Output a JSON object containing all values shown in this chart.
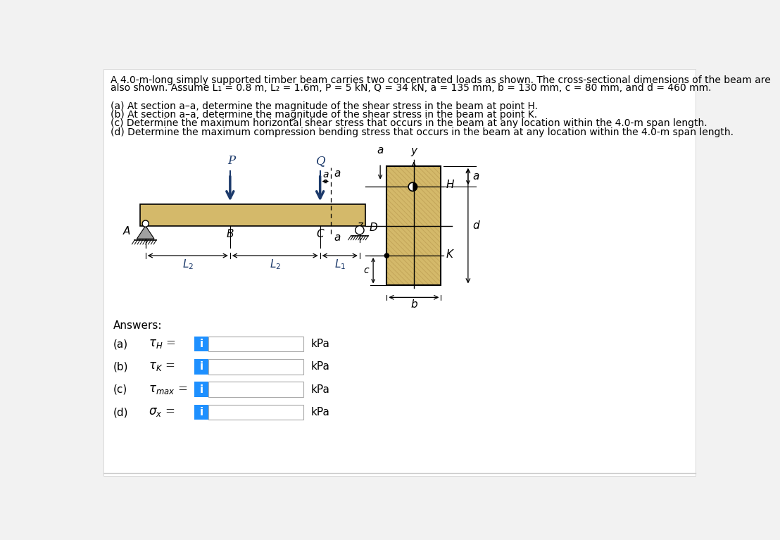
{
  "title_line1": "A 4.0-m-long simply supported timber beam carries two concentrated loads as shown. The cross-sectional dimensions of the beam are",
  "title_line2": "also shown. Assume L₁ = 0.8 m, L₂ = 1.6m, P = 5 kN, Q = 34 kN, a = 135 mm, b = 130 mm, c = 80 mm, and d = 460 mm.",
  "questions": [
    "(a) At section a–a, determine the magnitude of the shear stress in the beam at point H.",
    "(b) At section a–a, determine the magnitude of the shear stress in the beam at point K.",
    "(c) Determine the maximum horizontal shear stress that occurs in the beam at any location within the 4.0-m span length.",
    "(d) Determine the maximum compression bending stress that occurs in the beam at any location within the 4.0-m span length."
  ],
  "beam_color": "#D4B96A",
  "wood_stripe_color": "#BFA055",
  "bg_color": "#F2F2F2",
  "blue_btn": "#1E90FF",
  "dark_blue": "#1C3A6B"
}
